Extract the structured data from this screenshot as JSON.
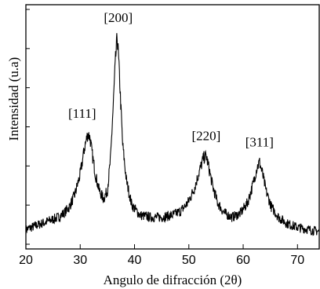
{
  "chart_data": {
    "type": "line",
    "title": "",
    "xlabel": "Angulo de difracción (2θ)",
    "ylabel": "Intensidad (u.a)",
    "xlim": [
      20,
      74
    ],
    "ylim": [
      0,
      1
    ],
    "x_ticks": [
      "20",
      "30",
      "40",
      "50",
      "60",
      "70"
    ],
    "y_ticks_labeled": false,
    "grid": false,
    "legend": "none",
    "series": [
      {
        "x": [
          20,
          22,
          24,
          26,
          27,
          28,
          29,
          30,
          30.8,
          31.4,
          31.8,
          32.2,
          32.8,
          33.5,
          34.3,
          35.0,
          35.6,
          36.1,
          36.5,
          36.8,
          37.0,
          37.3,
          37.8,
          38.5,
          39.5,
          41,
          43,
          45,
          47,
          48.5,
          49.8,
          51,
          52,
          52.7,
          53.2,
          53.7,
          54.4,
          55.3,
          56.5,
          58,
          59.5,
          60.8,
          61.8,
          62.5,
          63.0,
          63.5,
          64.2,
          65.2,
          66.5,
          68,
          70,
          72,
          74
        ],
        "y": [
          0.03,
          0.05,
          0.07,
          0.09,
          0.11,
          0.14,
          0.2,
          0.3,
          0.43,
          0.5,
          0.48,
          0.4,
          0.3,
          0.22,
          0.18,
          0.22,
          0.38,
          0.65,
          0.86,
          0.97,
          0.9,
          0.74,
          0.45,
          0.27,
          0.15,
          0.1,
          0.09,
          0.09,
          0.1,
          0.12,
          0.16,
          0.23,
          0.32,
          0.38,
          0.39,
          0.33,
          0.24,
          0.16,
          0.11,
          0.09,
          0.11,
          0.16,
          0.25,
          0.33,
          0.36,
          0.31,
          0.22,
          0.14,
          0.09,
          0.06,
          0.04,
          0.03,
          0.02
        ]
      }
    ],
    "annotations": [
      {
        "text": "[111]",
        "x": 31.8,
        "y": 0.5
      },
      {
        "text": "[200]",
        "x": 37.0,
        "y": 0.97
      },
      {
        "text": "[220]",
        "x": 53.2,
        "y": 0.39
      },
      {
        "text": "[311]",
        "x": 63.0,
        "y": 0.36
      }
    ]
  },
  "colors": {
    "line": "#000000",
    "axis": "#000000"
  }
}
